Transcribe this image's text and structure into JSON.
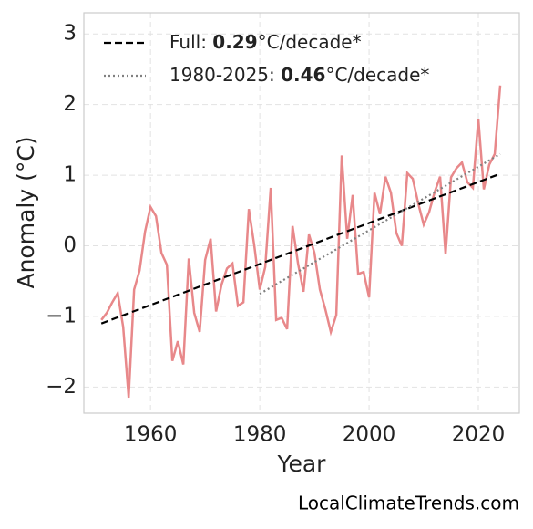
{
  "chart_data": {
    "type": "line",
    "xlabel": "Year",
    "ylabel": "Anomaly (°C)",
    "watermark": "LocalClimateTrends.com",
    "x": [
      1951,
      1952,
      1953,
      1954,
      1955,
      1956,
      1957,
      1958,
      1959,
      1960,
      1961,
      1962,
      1963,
      1964,
      1965,
      1966,
      1967,
      1968,
      1969,
      1970,
      1971,
      1972,
      1973,
      1974,
      1975,
      1976,
      1977,
      1978,
      1979,
      1980,
      1981,
      1982,
      1983,
      1984,
      1985,
      1986,
      1987,
      1988,
      1989,
      1990,
      1991,
      1992,
      1993,
      1994,
      1995,
      1996,
      1997,
      1998,
      1999,
      2000,
      2001,
      2002,
      2003,
      2004,
      2005,
      2006,
      2007,
      2008,
      2009,
      2010,
      2011,
      2012,
      2013,
      2014,
      2015,
      2016,
      2017,
      2018,
      2019,
      2020,
      2021,
      2022,
      2023,
      2024
    ],
    "series": [
      {
        "color": "#e8888a",
        "values": [
          -1.05,
          -0.95,
          -0.8,
          -0.67,
          -1.15,
          -2.15,
          -0.62,
          -0.35,
          0.2,
          0.55,
          0.42,
          -0.1,
          -0.27,
          -1.63,
          -1.35,
          -1.68,
          -0.18,
          -0.95,
          -1.22,
          -0.2,
          0.1,
          -0.93,
          -0.55,
          -0.32,
          -0.25,
          -0.85,
          -0.8,
          0.52,
          0.0,
          -0.62,
          -0.3,
          0.82,
          -1.05,
          -1.02,
          -1.18,
          0.28,
          -0.25,
          -0.65,
          0.16,
          -0.1,
          -0.62,
          -0.9,
          -1.22,
          -0.98,
          1.28,
          0.1,
          0.72,
          -0.4,
          -0.37,
          -0.73,
          0.75,
          0.45,
          0.98,
          0.75,
          0.18,
          0.0,
          1.03,
          0.95,
          0.6,
          0.3,
          0.48,
          0.76,
          0.98,
          -0.12,
          0.97,
          1.1,
          1.18,
          0.9,
          0.82,
          1.8,
          0.8,
          1.15,
          1.3,
          2.27
        ]
      }
    ],
    "trends": [
      {
        "name_parts": [
          "Full: ",
          "0.29",
          "°C/decade*"
        ],
        "color": "#000000",
        "dash": "dashed",
        "x": [
          1951,
          2024
        ],
        "values": [
          -1.1,
          1.02
        ]
      },
      {
        "name_parts": [
          "1980-2025: ",
          "0.46",
          "°C/decade*"
        ],
        "color": "#808080",
        "dash": "dotted",
        "x": [
          1980,
          2024
        ],
        "values": [
          -0.68,
          1.3
        ]
      }
    ],
    "xlim": [
      1947.8,
      2027.5
    ],
    "ylim": [
      -2.37,
      3.3
    ],
    "xticks": [
      1960,
      1980,
      2000,
      2020
    ],
    "yticks": [
      {
        "value": -2,
        "label": "−2"
      },
      {
        "value": -1,
        "label": "−1"
      },
      0,
      1,
      2,
      3
    ],
    "grid": true,
    "legend": "upper left"
  }
}
